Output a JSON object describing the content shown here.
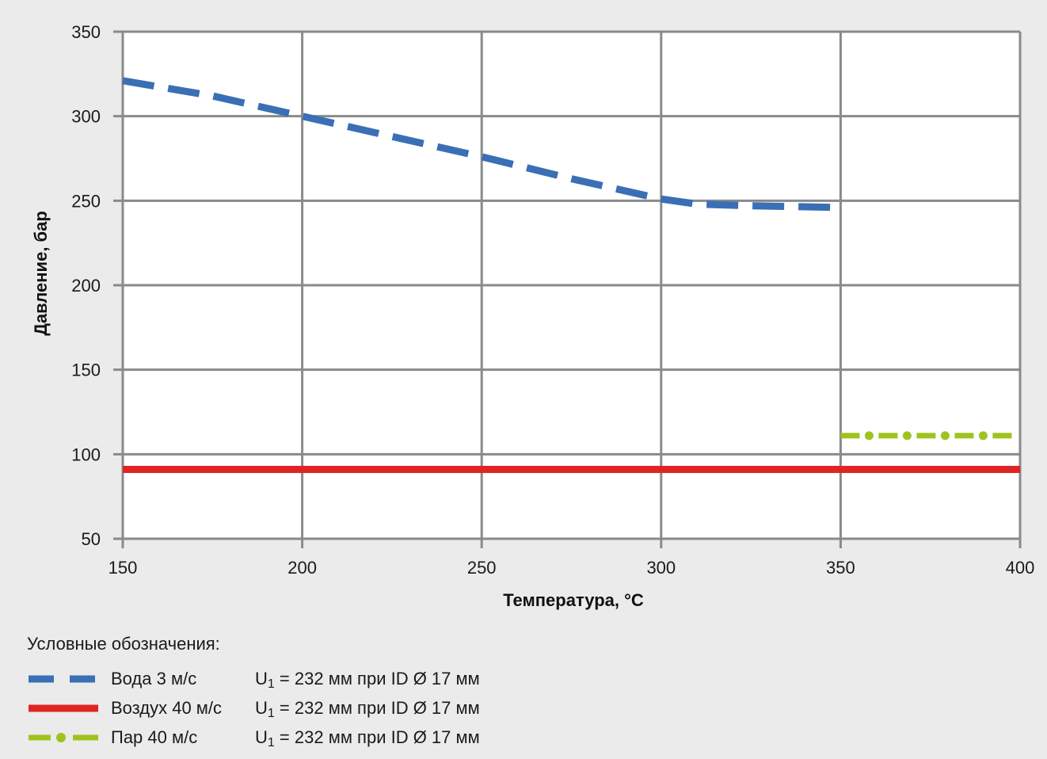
{
  "chart_data": {
    "type": "line",
    "title": "",
    "xlabel": "Температура, °C",
    "ylabel": "Давление, бар",
    "xlim": [
      150,
      400
    ],
    "ylim": [
      50,
      350
    ],
    "xticks": [
      150,
      200,
      250,
      300,
      350,
      400
    ],
    "yticks": [
      50,
      100,
      150,
      200,
      250,
      300,
      350
    ],
    "grid": true,
    "series": [
      {
        "name": "Вода 3 м/с",
        "color": "#3a6fb5",
        "style": "dashed",
        "points": [
          [
            150,
            321
          ],
          [
            175,
            312
          ],
          [
            200,
            300
          ],
          [
            225,
            288
          ],
          [
            250,
            276
          ],
          [
            275,
            263
          ],
          [
            300,
            251
          ],
          [
            310,
            248
          ],
          [
            325,
            247
          ],
          [
            350,
            246
          ]
        ]
      },
      {
        "name": "Воздух 40 м/с",
        "color": "#e02424",
        "style": "solid",
        "points": [
          [
            150,
            91
          ],
          [
            400,
            91
          ]
        ]
      },
      {
        "name": "Пар 40 м/с",
        "color": "#9fc31e",
        "style": "dash-dot",
        "points": [
          [
            350,
            111
          ],
          [
            400,
            111
          ]
        ]
      }
    ]
  },
  "legend": {
    "header": "Условные обозначения:",
    "items": [
      {
        "name": "Вода 3 м/с",
        "note_prefix": "U",
        "note_sub": "1",
        "note_rest": " = 232 мм при ID Ø 17 мм"
      },
      {
        "name": "Воздух 40 м/с",
        "note_prefix": "U",
        "note_sub": "1",
        "note_rest": " = 232 мм при ID Ø 17 мм"
      },
      {
        "name": "Пар 40 м/с",
        "note_prefix": "U",
        "note_sub": "1",
        "note_rest": " = 232 мм при ID Ø 17 мм"
      }
    ]
  }
}
